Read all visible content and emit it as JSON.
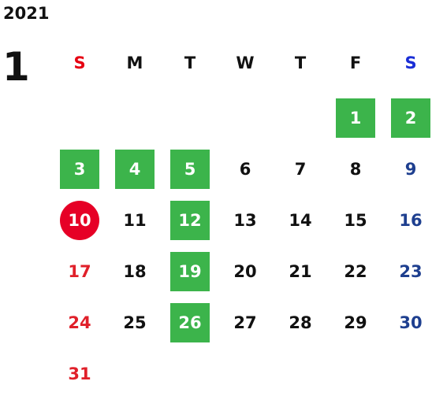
{
  "year": "2021",
  "month": "1",
  "weekdays": [
    "S",
    "M",
    "T",
    "W",
    "T",
    "F",
    "S"
  ],
  "days": [
    {
      "label": "1",
      "col": 5,
      "row": 0,
      "holiday": true
    },
    {
      "label": "2",
      "col": 6,
      "row": 0,
      "holiday": true
    },
    {
      "label": "3",
      "col": 0,
      "row": 1,
      "holiday": true
    },
    {
      "label": "4",
      "col": 1,
      "row": 1,
      "holiday": true
    },
    {
      "label": "5",
      "col": 2,
      "row": 1,
      "holiday": true
    },
    {
      "label": "6",
      "col": 3,
      "row": 1
    },
    {
      "label": "7",
      "col": 4,
      "row": 1
    },
    {
      "label": "8",
      "col": 5,
      "row": 1
    },
    {
      "label": "9",
      "col": 6,
      "row": 1
    },
    {
      "label": "10",
      "col": 0,
      "row": 2,
      "today": true
    },
    {
      "label": "11",
      "col": 1,
      "row": 2
    },
    {
      "label": "12",
      "col": 2,
      "row": 2,
      "holiday": true
    },
    {
      "label": "13",
      "col": 3,
      "row": 2
    },
    {
      "label": "14",
      "col": 4,
      "row": 2
    },
    {
      "label": "15",
      "col": 5,
      "row": 2
    },
    {
      "label": "16",
      "col": 6,
      "row": 2
    },
    {
      "label": "17",
      "col": 0,
      "row": 3
    },
    {
      "label": "18",
      "col": 1,
      "row": 3
    },
    {
      "label": "19",
      "col": 2,
      "row": 3,
      "holiday": true
    },
    {
      "label": "20",
      "col": 3,
      "row": 3
    },
    {
      "label": "21",
      "col": 4,
      "row": 3
    },
    {
      "label": "22",
      "col": 5,
      "row": 3
    },
    {
      "label": "23",
      "col": 6,
      "row": 3
    },
    {
      "label": "24",
      "col": 0,
      "row": 4
    },
    {
      "label": "25",
      "col": 1,
      "row": 4
    },
    {
      "label": "26",
      "col": 2,
      "row": 4,
      "holiday": true
    },
    {
      "label": "27",
      "col": 3,
      "row": 4
    },
    {
      "label": "28",
      "col": 4,
      "row": 4
    },
    {
      "label": "29",
      "col": 5,
      "row": 4
    },
    {
      "label": "30",
      "col": 6,
      "row": 4
    },
    {
      "label": "31",
      "col": 0,
      "row": 5
    }
  ],
  "colors": {
    "holiday_bg": "#3cb44b",
    "today_bg": "#e60026",
    "sunday": "#e0202a",
    "saturday": "#1e3f8f"
  }
}
